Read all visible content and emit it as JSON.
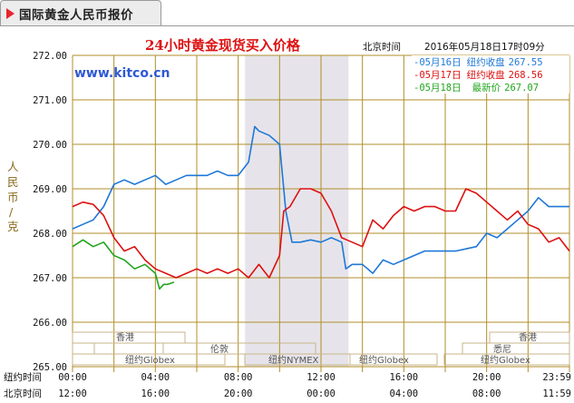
{
  "tab": {
    "title": "国际黄金人民币报价"
  },
  "header": {
    "chart_title": "24小时黄金现货买入价格",
    "beijing_label": "北京时间",
    "datetime": "2016年05月18日17时09分",
    "watermark": "www.kitco.cn"
  },
  "y_unit": [
    "人",
    "民",
    "币",
    "/",
    "克"
  ],
  "rows": {
    "ny_label": "纽约时间",
    "bj_label": "北京时间"
  },
  "x_ticks_ny": [
    "00:00",
    "04:00",
    "08:00",
    "12:00",
    "16:00",
    "20:00",
    "23:59"
  ],
  "x_ticks_bj": [
    "12:00",
    "16:00",
    "20:00",
    "00:00",
    "04:00",
    "08:00",
    "11:59"
  ],
  "legend": [
    {
      "date": "05月16日",
      "label": "纽约收盘",
      "value": "267.55",
      "color": "#1f78d8"
    },
    {
      "date": "05月17日",
      "label": "纽约收盘",
      "value": "268.56",
      "color": "#dd1111"
    },
    {
      "date": "05月18日",
      "label": "最新价",
      "value": "267.07",
      "color": "#22a51e"
    }
  ],
  "markets": {
    "hongkong": "香港",
    "london": "伦敦",
    "globex": "纽约Globex",
    "nymex": "纽约NYMEX",
    "sydney": "悉尼"
  },
  "colors": {
    "grid": "#b08e28",
    "band": "#e6e4ea",
    "axis": "#b08e28"
  },
  "chart_data": {
    "type": "line",
    "title": "24小时黄金现货买入价格",
    "ylabel": "人民币/克",
    "xlabel": "纽约时间",
    "ylim": [
      265,
      272
    ],
    "y_ticks": [
      "272.00",
      "271.00",
      "270.00",
      "269.00",
      "268.00",
      "267.00",
      "266.00",
      "265.00"
    ],
    "xlim": [
      0,
      24
    ],
    "shaded_hours": [
      8.33,
      13.33
    ],
    "series": [
      {
        "name": "05月16日",
        "color": "#1f78d8",
        "x": [
          0,
          0.5,
          1,
          1.5,
          2,
          2.5,
          3,
          3.5,
          4,
          4.5,
          5,
          5.5,
          6,
          6.5,
          7,
          7.5,
          8,
          8.5,
          8.8,
          9,
          9.5,
          10,
          10.3,
          10.6,
          11,
          11.5,
          12,
          12.5,
          13,
          13.2,
          13.5,
          14,
          14.5,
          15,
          15.5,
          16,
          16.5,
          17,
          17.5,
          18,
          18.5,
          19,
          19.5,
          20,
          20.5,
          21,
          21.5,
          22,
          22.5,
          23,
          23.5,
          24
        ],
        "y": [
          268.1,
          268.2,
          268.3,
          268.6,
          269.1,
          269.2,
          269.1,
          269.2,
          269.3,
          269.1,
          269.2,
          269.3,
          269.3,
          269.3,
          269.4,
          269.3,
          269.3,
          269.6,
          270.4,
          270.3,
          270.2,
          270.0,
          268.5,
          267.8,
          267.8,
          267.85,
          267.8,
          267.9,
          267.8,
          267.2,
          267.3,
          267.3,
          267.1,
          267.4,
          267.3,
          267.4,
          267.5,
          267.6,
          267.6,
          267.6,
          267.6,
          267.65,
          267.7,
          268.0,
          267.9,
          268.1,
          268.3,
          268.5,
          268.8,
          268.6,
          268.6,
          268.6
        ]
      },
      {
        "name": "05月17日",
        "color": "#dd1111",
        "x": [
          0,
          0.5,
          1,
          1.5,
          2,
          2.5,
          3,
          3.5,
          4,
          4.5,
          5,
          5.5,
          6,
          6.5,
          7,
          7.5,
          8,
          8.5,
          9,
          9.5,
          10,
          10.2,
          10.5,
          11,
          11.5,
          12,
          12.5,
          13,
          13.5,
          14,
          14.5,
          15,
          15.5,
          16,
          16.5,
          17,
          17.5,
          18,
          18.5,
          19,
          19.5,
          20,
          20.5,
          21,
          21.5,
          22,
          22.5,
          23,
          23.5,
          24
        ],
        "y": [
          268.6,
          268.7,
          268.65,
          268.4,
          267.9,
          267.6,
          267.7,
          267.4,
          267.2,
          267.1,
          267.0,
          267.1,
          267.2,
          267.1,
          267.2,
          267.1,
          267.2,
          267.0,
          267.3,
          267.0,
          267.5,
          268.5,
          268.6,
          269.0,
          269.0,
          268.9,
          268.5,
          267.9,
          267.8,
          267.7,
          268.3,
          268.1,
          268.4,
          268.6,
          268.5,
          268.6,
          268.6,
          268.5,
          268.5,
          269.0,
          268.9,
          268.7,
          268.5,
          268.3,
          268.5,
          268.2,
          268.1,
          267.8,
          267.9,
          267.6
        ]
      },
      {
        "name": "05月18日",
        "color": "#22a51e",
        "x": [
          0,
          0.5,
          1,
          1.5,
          2,
          2.5,
          3,
          3.5,
          4,
          4.2,
          4.4,
          4.6,
          4.9
        ],
        "y": [
          267.7,
          267.85,
          267.7,
          267.8,
          267.5,
          267.4,
          267.2,
          267.3,
          267.1,
          266.75,
          266.85,
          266.85,
          266.9
        ]
      }
    ]
  }
}
